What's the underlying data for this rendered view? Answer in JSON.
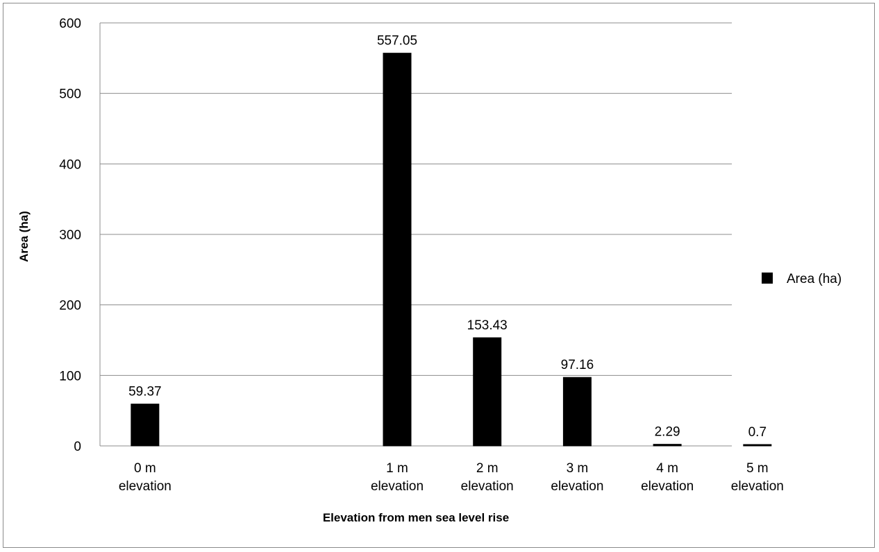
{
  "chart_data": {
    "type": "bar",
    "categories": [
      [
        "0 m",
        "elevation"
      ],
      [
        "1 m",
        "elevation"
      ],
      [
        "2 m",
        "elevation"
      ],
      [
        "3 m",
        "elevation"
      ],
      [
        "4 m",
        "elevation"
      ],
      [
        "5 m",
        "elevation"
      ]
    ],
    "category_gaps": [
      0,
      1.8,
      0,
      0,
      0,
      0
    ],
    "series": [
      {
        "name": "Area (ha)",
        "values": [
          59.37,
          557.05,
          153.43,
          97.16,
          2.29,
          0.7
        ],
        "data_labels": [
          "59.37",
          "557.05",
          "153.43",
          "97.16",
          "2.29",
          "0.7"
        ],
        "color": "#000000"
      }
    ],
    "title": "",
    "xlabel": "Elevation from men sea level rise",
    "ylabel": "Area  (ha)",
    "ylim": [
      0,
      600
    ],
    "yticks": [
      0,
      100,
      200,
      300,
      400,
      500,
      600
    ],
    "grid": true,
    "grid_color": "#8c8c8c",
    "legend_position": "right"
  }
}
